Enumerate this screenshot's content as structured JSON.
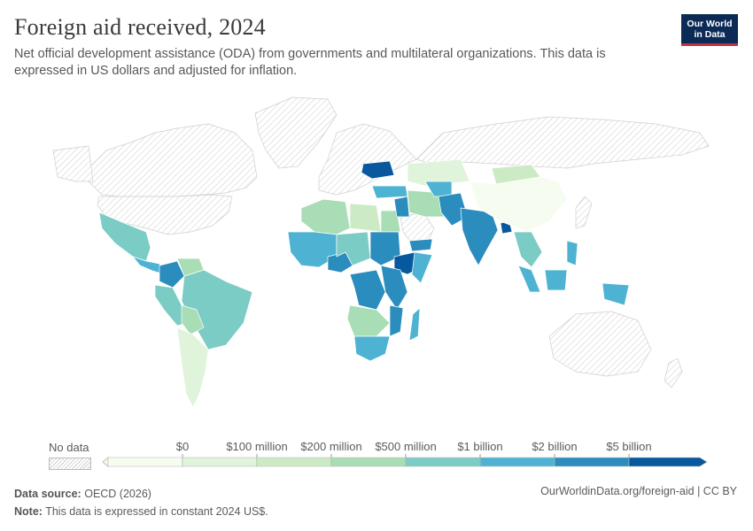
{
  "header": {
    "title": "Foreign aid received, 2024",
    "subtitle": "Net official development assistance (ODA) from governments and multilateral organizations. This data is expressed in US dollars and adjusted for inflation."
  },
  "logo": {
    "line1": "Our World",
    "line2": "in Data"
  },
  "legend": {
    "no_data_label": "No data",
    "bins": [
      {
        "label": "$0",
        "color": "#f7fcf0"
      },
      {
        "label": "$100 million",
        "color": "#e0f3db"
      },
      {
        "label": "$200 million",
        "color": "#ccebc5"
      },
      {
        "label": "$500 million",
        "color": "#a8ddb5"
      },
      {
        "label": "$1 billion",
        "color": "#7bccc4"
      },
      {
        "label": "$2 billion",
        "color": "#4eb3d3"
      },
      {
        "label": "$5 billion",
        "color": "#2b8cbe"
      }
    ],
    "top_color": "#08589e"
  },
  "footer": {
    "source_label": "Data source:",
    "source_value": "OECD (2026)",
    "note_label": "Note:",
    "note_value": "This data is expressed in constant 2024 US$.",
    "url": "OurWorldinData.org/foreign-aid | CC BY"
  }
}
